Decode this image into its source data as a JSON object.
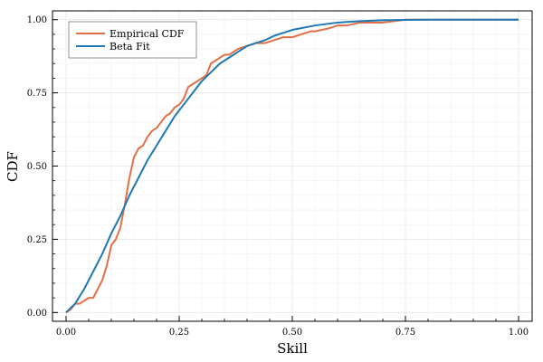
{
  "chart_data": {
    "type": "line",
    "xlabel": "Skill",
    "ylabel": "CDF",
    "xlim": [
      -0.03,
      1.03
    ],
    "ylim": [
      -0.03,
      1.03
    ],
    "x_ticks": [
      0.0,
      0.25,
      0.5,
      0.75,
      1.0
    ],
    "x_tick_labels": [
      "0.00",
      "0.25",
      "0.50",
      "0.75",
      "1.00"
    ],
    "y_ticks": [
      0.0,
      0.25,
      0.5,
      0.75,
      1.0
    ],
    "y_tick_labels": [
      "0.00",
      "0.25",
      "0.50",
      "0.75",
      "1.00"
    ],
    "grid": true,
    "legend_position": "top-left",
    "series": [
      {
        "name": "Empirical CDF",
        "color": "#e26f46",
        "x": [
          0.0,
          0.01,
          0.02,
          0.03,
          0.04,
          0.05,
          0.06,
          0.07,
          0.08,
          0.09,
          0.1,
          0.11,
          0.12,
          0.13,
          0.14,
          0.15,
          0.16,
          0.17,
          0.18,
          0.19,
          0.2,
          0.21,
          0.22,
          0.23,
          0.24,
          0.25,
          0.26,
          0.27,
          0.28,
          0.29,
          0.3,
          0.31,
          0.32,
          0.33,
          0.34,
          0.35,
          0.36,
          0.38,
          0.4,
          0.42,
          0.44,
          0.46,
          0.48,
          0.5,
          0.52,
          0.54,
          0.55,
          0.58,
          0.6,
          0.62,
          0.65,
          0.7,
          0.75,
          0.8,
          0.85,
          1.0
        ],
        "y": [
          0.0,
          0.01,
          0.03,
          0.03,
          0.04,
          0.05,
          0.05,
          0.08,
          0.11,
          0.16,
          0.23,
          0.25,
          0.29,
          0.37,
          0.46,
          0.53,
          0.56,
          0.57,
          0.6,
          0.62,
          0.63,
          0.65,
          0.67,
          0.68,
          0.7,
          0.71,
          0.73,
          0.77,
          0.78,
          0.79,
          0.8,
          0.81,
          0.85,
          0.86,
          0.87,
          0.88,
          0.88,
          0.9,
          0.91,
          0.92,
          0.92,
          0.93,
          0.94,
          0.94,
          0.95,
          0.96,
          0.96,
          0.97,
          0.98,
          0.98,
          0.99,
          0.99,
          1.0,
          1.0,
          1.0,
          1.0
        ]
      },
      {
        "name": "Beta Fit",
        "color": "#1f77b4",
        "x": [
          0.0,
          0.02,
          0.04,
          0.06,
          0.08,
          0.1,
          0.12,
          0.14,
          0.16,
          0.18,
          0.2,
          0.22,
          0.24,
          0.26,
          0.28,
          0.3,
          0.32,
          0.34,
          0.36,
          0.38,
          0.4,
          0.42,
          0.44,
          0.46,
          0.48,
          0.5,
          0.55,
          0.6,
          0.65,
          0.7,
          0.75,
          0.8,
          0.85,
          0.9,
          1.0
        ],
        "y": [
          0.0,
          0.03,
          0.08,
          0.14,
          0.2,
          0.27,
          0.33,
          0.4,
          0.46,
          0.52,
          0.57,
          0.62,
          0.67,
          0.71,
          0.75,
          0.79,
          0.82,
          0.85,
          0.87,
          0.89,
          0.91,
          0.92,
          0.93,
          0.945,
          0.955,
          0.965,
          0.98,
          0.99,
          0.995,
          0.998,
          0.999,
          1.0,
          1.0,
          1.0,
          1.0
        ]
      }
    ]
  }
}
